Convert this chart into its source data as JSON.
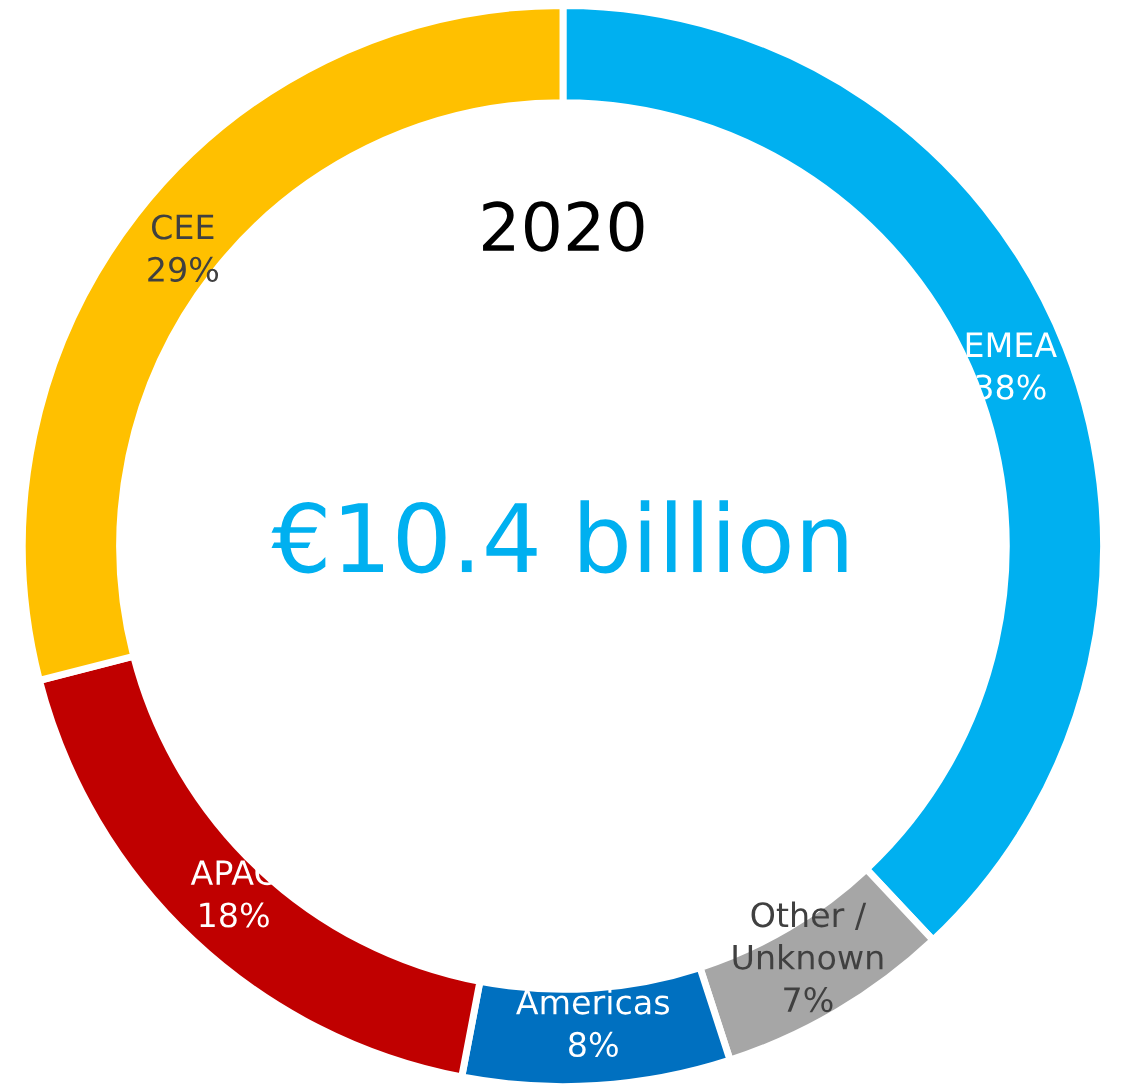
{
  "chart_data": {
    "type": "donut",
    "title": "2020",
    "annotations": [
      "€10.4 billion"
    ],
    "categories": [
      "EMEA",
      "Other /\nUnknown",
      "Americas",
      "APAC",
      "CEE"
    ],
    "values": [
      38,
      7,
      8,
      18,
      29
    ],
    "colors": [
      "#00b0f0",
      "#a6a6a6",
      "#0070c0",
      "#c00000",
      "#ffc000"
    ],
    "value_labels": [
      "38%",
      "7%",
      "8%",
      "18%",
      "29%"
    ]
  }
}
